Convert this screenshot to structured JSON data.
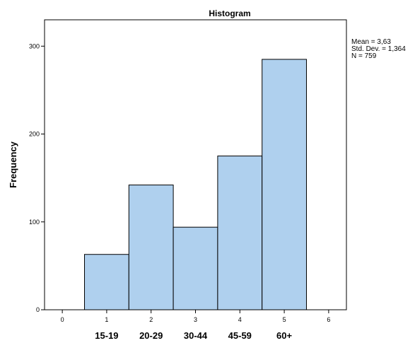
{
  "chart_data": {
    "type": "bar",
    "title": "Histogram",
    "ylabel": "Frequency",
    "xlabel": "",
    "x_ticks": [
      0,
      1,
      2,
      3,
      4,
      5,
      6
    ],
    "x_range": [
      -0.4,
      6.4
    ],
    "y_ticks": [
      0,
      100,
      200,
      300
    ],
    "ylim": [
      0,
      330
    ],
    "bins": [
      {
        "center": 1,
        "value": 63
      },
      {
        "center": 2,
        "value": 142
      },
      {
        "center": 3,
        "value": 94
      },
      {
        "center": 4,
        "value": 175
      },
      {
        "center": 5,
        "value": 285
      }
    ],
    "category_labels": [
      "15-19",
      "20-29",
      "30-44",
      "45-59",
      "60+"
    ],
    "stats": [
      "Mean = 3,63",
      "Std. Dev. = 1,364",
      "N = 759"
    ],
    "bar_color": "#afd0ee",
    "bar_stroke": "#000000",
    "grid": false,
    "legend": "top-right"
  }
}
